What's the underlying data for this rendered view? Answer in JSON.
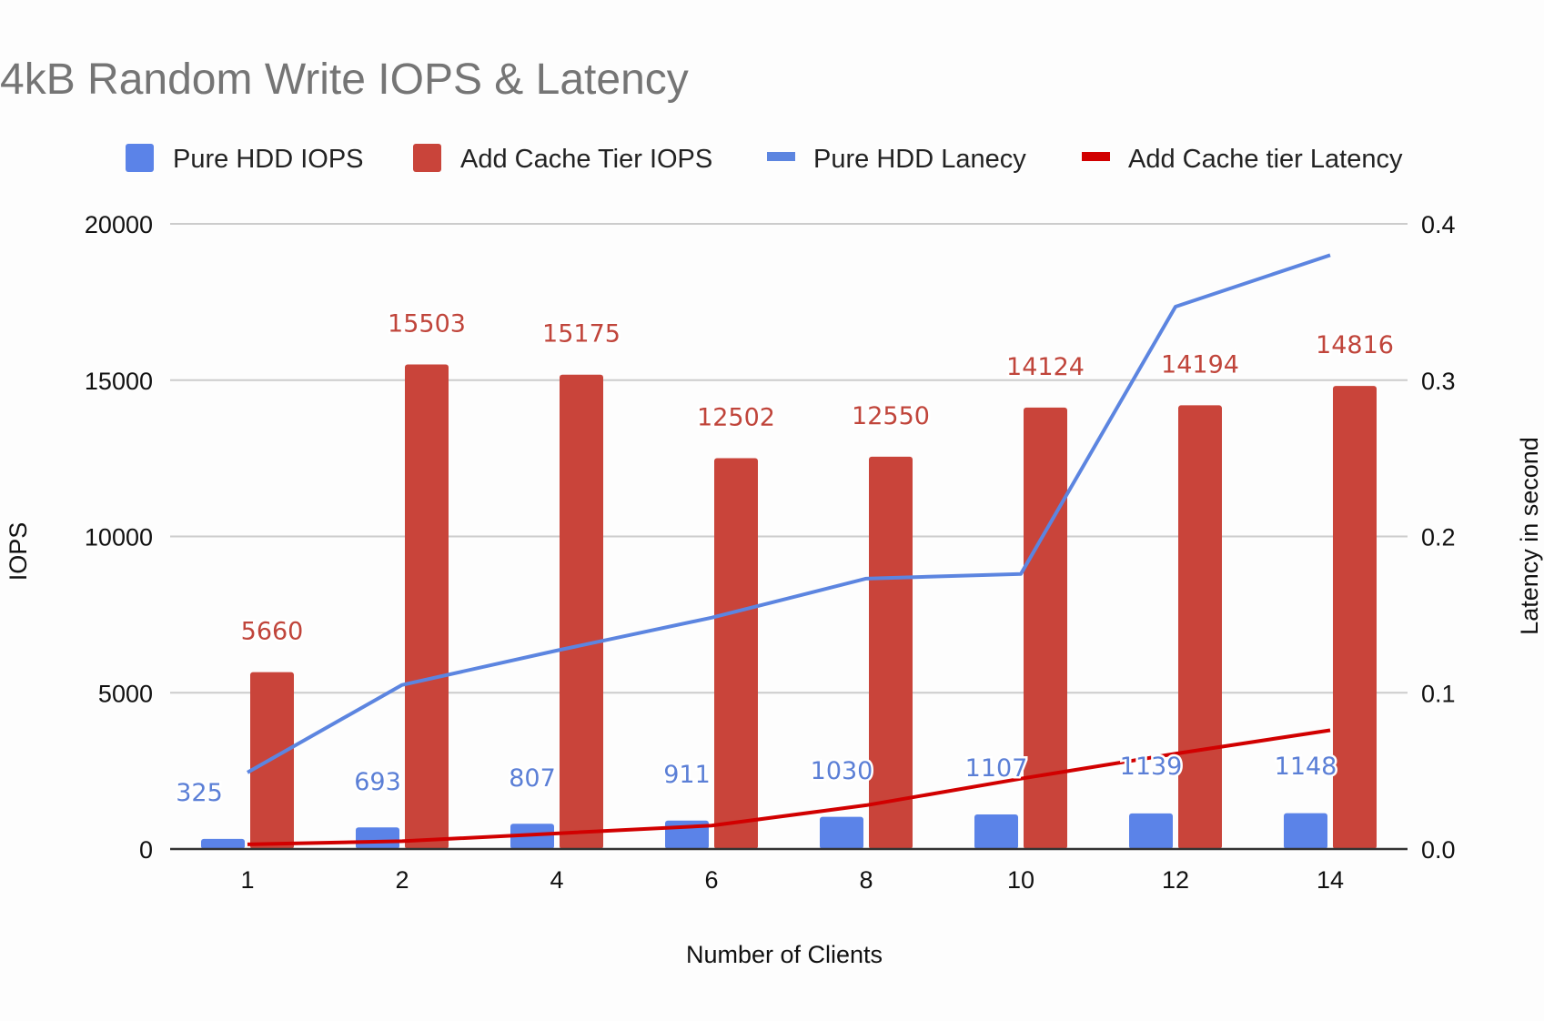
{
  "chart_data": {
    "type": "bar",
    "title": "4kB Random Write IOPS & Latency",
    "xlabel": "Number of Clients",
    "ylabel": "IOPS",
    "y2label": "Latency in second",
    "categories": [
      "1",
      "2",
      "4",
      "6",
      "8",
      "10",
      "12",
      "14"
    ],
    "ylim": [
      0,
      20000
    ],
    "yticks": [
      "0",
      "5000",
      "10000",
      "15000",
      "20000"
    ],
    "y2lim": [
      0,
      0.4
    ],
    "y2ticks": [
      "0.0",
      "0.1",
      "0.2",
      "0.3",
      "0.4"
    ],
    "grid": true,
    "legend_position": "top",
    "series": [
      {
        "name": "Pure HDD IOPS",
        "type": "bar",
        "axis": "left",
        "color": "#5b83e8",
        "label_color": "#5b7fd6",
        "values": [
          325,
          693,
          807,
          911,
          1030,
          1107,
          1139,
          1148
        ],
        "labels": [
          "325",
          "693",
          "807",
          "911",
          "1030",
          "1107",
          "1139",
          "1148"
        ]
      },
      {
        "name": "Add Cache Tier IOPS",
        "type": "bar",
        "axis": "left",
        "color": "#c9443a",
        "label_color": "#c0453b",
        "values": [
          5660,
          15503,
          15175,
          12502,
          12550,
          14124,
          14194,
          14816
        ],
        "labels": [
          "5660",
          "15503",
          "15175",
          "12502",
          "12550",
          "14124",
          "14194",
          "14816"
        ]
      },
      {
        "name": "Pure HDD Lanecy",
        "type": "line",
        "axis": "right",
        "color": "#5c85e0",
        "values": [
          0.049,
          0.105,
          0.127,
          0.148,
          0.173,
          0.176,
          0.347,
          0.38
        ]
      },
      {
        "name": "Add Cache tier Latency",
        "type": "line",
        "axis": "right",
        "color": "#d10000",
        "values": [
          0.003,
          0.005,
          0.01,
          0.015,
          0.028,
          0.045,
          0.061,
          0.076
        ]
      }
    ]
  }
}
